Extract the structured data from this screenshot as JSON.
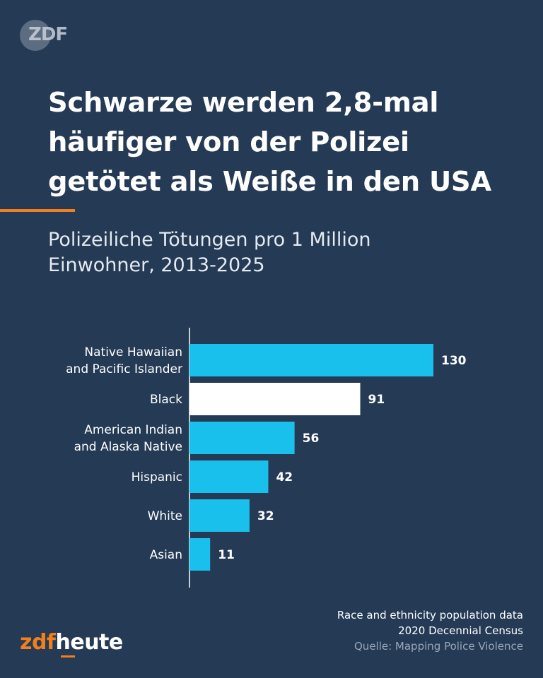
{
  "logo": {
    "text": "ZDF",
    "icon": "zdf-logo-icon"
  },
  "title": "Schwarze werden 2,8-mal\nhäufiger von der Polizei\ngetötet als Weiße in den USA",
  "subtitle": "Polizeiliche Tötungen pro 1 Million\nEinwohner, 2013-2025",
  "chart_data": {
    "type": "bar",
    "orientation": "horizontal",
    "title": "Polizeiliche Tötungen pro 1 Million Einwohner, 2013-2025",
    "xlabel": "",
    "ylabel": "",
    "categories": [
      [
        "Native Hawaiian",
        "and Pacific Islander"
      ],
      [
        "Black"
      ],
      [
        "American Indian",
        "and Alaska Native"
      ],
      [
        "Hispanic"
      ],
      [
        "White"
      ],
      [
        "Asian"
      ]
    ],
    "values": [
      130,
      91,
      56,
      42,
      32,
      11
    ],
    "highlight_index": 1,
    "xlim": [
      0,
      130
    ],
    "grid": false,
    "colors": {
      "bar": "#1ac0ec",
      "highlight": "#ffffff",
      "axis": "#ffffff",
      "label": "#ffffff"
    }
  },
  "source": {
    "line1": "Race and ethnicity population data",
    "line2": "2020 Decennial Census",
    "line3": "Quelle: Mapping Police Violence"
  },
  "brand": {
    "part1": "zdf",
    "part2": "heute"
  },
  "colors": {
    "background": "#243a55",
    "accent": "#f07f1d",
    "bar": "#1ac0ec"
  }
}
